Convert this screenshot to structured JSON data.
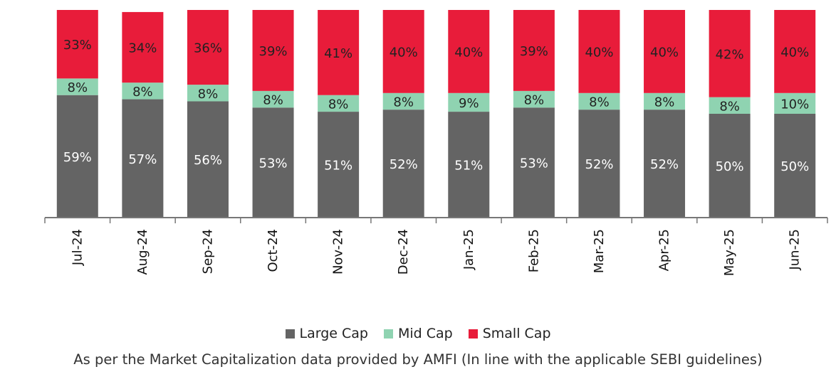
{
  "chart_data": {
    "type": "bar",
    "stacked": true,
    "categories": [
      "Jul-24",
      "Aug-24",
      "Sep-24",
      "Oct-24",
      "Nov-24",
      "Dec-24",
      "Jan-25",
      "Feb-25",
      "Mar-25",
      "Apr-25",
      "May-25",
      "Jun-25"
    ],
    "series": [
      {
        "name": "Large Cap",
        "color": "#646464",
        "values": [
          59,
          57,
          56,
          53,
          51,
          52,
          51,
          53,
          52,
          52,
          50,
          50
        ]
      },
      {
        "name": "Mid Cap",
        "color": "#8fd3b1",
        "values": [
          8,
          8,
          8,
          8,
          8,
          8,
          9,
          8,
          8,
          8,
          8,
          10
        ]
      },
      {
        "name": "Small Cap",
        "color": "#e81c3a",
        "values": [
          33,
          34,
          36,
          39,
          41,
          40,
          40,
          39,
          40,
          40,
          42,
          40
        ]
      }
    ],
    "ylim": [
      0,
      100
    ],
    "grid": false,
    "legend_position": "bottom"
  },
  "footnote": "As per the Market Capitalization data provided by AMFI (In line with the applicable SEBI guidelines)"
}
